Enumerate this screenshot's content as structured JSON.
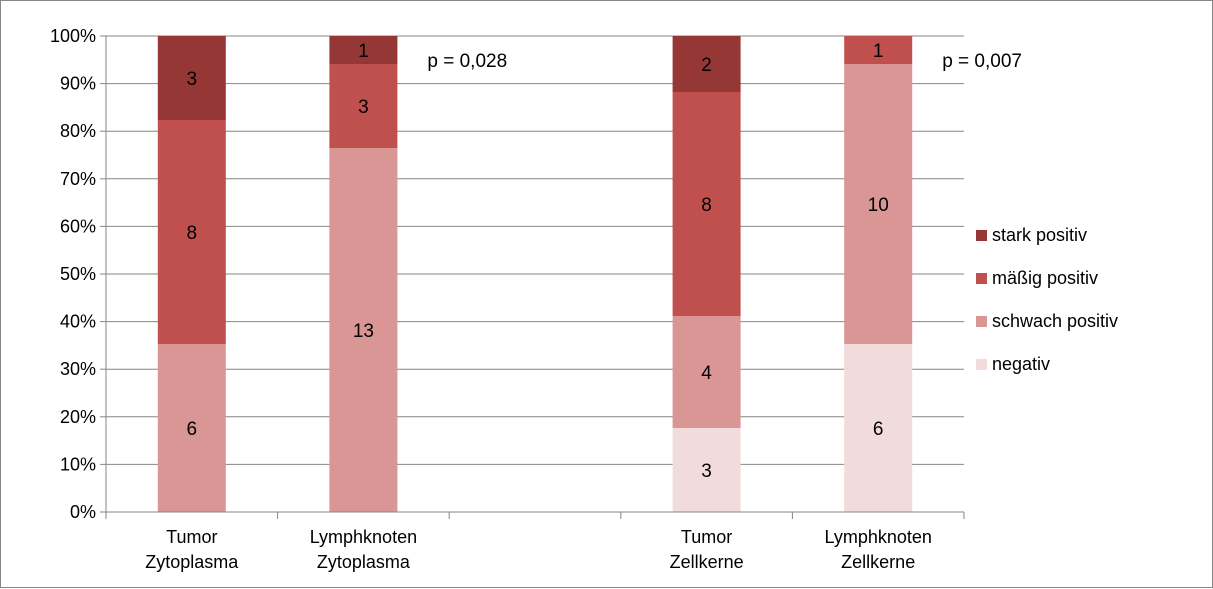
{
  "chart_data": {
    "type": "bar",
    "stacked": true,
    "percent_stacked": true,
    "categories": [
      [
        "Tumor",
        "Zytoplasma"
      ],
      [
        "Lymphknoten",
        "Zytoplasma"
      ],
      [
        "",
        ""
      ],
      [
        "Tumor",
        "Zellkerne"
      ],
      [
        "Lymphknoten",
        "Zellkerne"
      ]
    ],
    "series": [
      {
        "name": "negativ",
        "color": "#f2dcdb",
        "values": [
          0,
          0,
          null,
          3,
          6
        ]
      },
      {
        "name": "schwach positiv",
        "color": "#d99694",
        "values": [
          6,
          13,
          null,
          4,
          10
        ]
      },
      {
        "name": "mäßig positiv",
        "color": "#c0504d",
        "values": [
          8,
          3,
          null,
          8,
          1
        ]
      },
      {
        "name": "stark positiv",
        "color": "#953735",
        "values": [
          3,
          1,
          null,
          2,
          0
        ]
      }
    ],
    "y_ticks": [
      "0%",
      "10%",
      "20%",
      "30%",
      "40%",
      "50%",
      "60%",
      "70%",
      "80%",
      "90%",
      "100%"
    ],
    "ylim": [
      0,
      100
    ],
    "grid": true,
    "legend_position": "right",
    "annotations": [
      {
        "text": "p = 0,028",
        "category_index": 1
      },
      {
        "text": "p = 0,007",
        "category_index": 4
      }
    ]
  }
}
